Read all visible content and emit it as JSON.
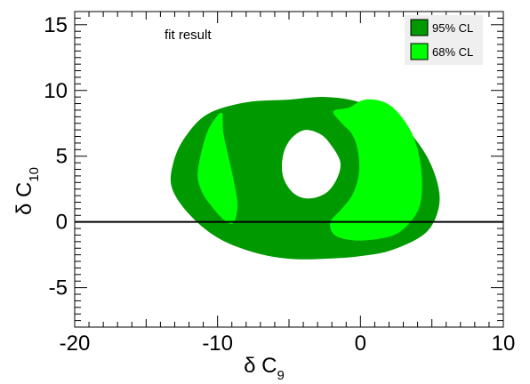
{
  "chart_data": {
    "type": "area",
    "title": "",
    "annotation": "fit result",
    "xlabel": {
      "main": "δ C",
      "sub": "9"
    },
    "ylabel": {
      "main": "δ C",
      "sub": "10"
    },
    "xlim": [
      -20,
      10
    ],
    "ylim": [
      -8,
      16
    ],
    "xticks": [
      -20,
      -10,
      0,
      10
    ],
    "xtick_labels": [
      "-20",
      "-10",
      "0",
      "10"
    ],
    "yticks": [
      -5,
      0,
      5,
      10,
      15
    ],
    "ytick_labels": [
      "-5",
      "0",
      "5",
      "10",
      "15"
    ],
    "reference_line": {
      "axis": "y",
      "value": 0,
      "color": "#000000"
    },
    "legend": {
      "placement": "top-right",
      "entries": [
        {
          "label": "95% CL",
          "color": "#009900"
        },
        {
          "label": "68% CL",
          "color": "#00ff00"
        }
      ]
    },
    "regions": {
      "cl95_outer": [
        [
          -5,
          9.3
        ],
        [
          -2.5,
          9.5
        ],
        [
          0,
          9.1
        ],
        [
          2.5,
          7.8
        ],
        [
          4.3,
          5.6
        ],
        [
          5.3,
          3.3
        ],
        [
          5.5,
          1.2
        ],
        [
          4.6,
          -0.8
        ],
        [
          2.3,
          -2.1
        ],
        [
          0,
          -2.6
        ],
        [
          -2.5,
          -2.8
        ],
        [
          -5,
          -2.8
        ],
        [
          -7.5,
          -2.3
        ],
        [
          -10,
          -1.2
        ],
        [
          -12,
          0.6
        ],
        [
          -13.2,
          2.6
        ],
        [
          -13.1,
          4.5
        ],
        [
          -12.3,
          6.4
        ],
        [
          -10.7,
          8.2
        ],
        [
          -8,
          9.1
        ]
      ],
      "cl95_hole": [
        [
          -3.8,
          7.0
        ],
        [
          -2.7,
          6.6
        ],
        [
          -1.9,
          5.6
        ],
        [
          -1.4,
          4.5
        ],
        [
          -1.6,
          3.4
        ],
        [
          -2.2,
          2.4
        ],
        [
          -3.0,
          1.9
        ],
        [
          -3.9,
          1.8
        ],
        [
          -4.7,
          2.2
        ],
        [
          -5.3,
          3.1
        ],
        [
          -5.5,
          4.2
        ],
        [
          -5.3,
          5.5
        ],
        [
          -4.7,
          6.5
        ]
      ],
      "cl68_left": [
        [
          -9.7,
          8.3
        ],
        [
          -9.6,
          6.8
        ],
        [
          -9.2,
          4.8
        ],
        [
          -8.8,
          2.8
        ],
        [
          -8.6,
          1.2
        ],
        [
          -8.9,
          -0.1
        ],
        [
          -9.6,
          0.2
        ],
        [
          -10.5,
          1.3
        ],
        [
          -11.1,
          2.3
        ],
        [
          -11.4,
          3.5
        ],
        [
          -11.2,
          5.0
        ],
        [
          -10.8,
          6.6
        ],
        [
          -10.4,
          7.5
        ]
      ],
      "cl68_right": [
        [
          -0.8,
          8.7
        ],
        [
          0.3,
          9.3
        ],
        [
          1.7,
          9.1
        ],
        [
          2.8,
          8.1
        ],
        [
          3.7,
          6.5
        ],
        [
          4.2,
          4.5
        ],
        [
          4.3,
          2.2
        ],
        [
          3.9,
          0.6
        ],
        [
          2.7,
          -0.8
        ],
        [
          1.2,
          -1.3
        ],
        [
          -0.5,
          -1.4
        ],
        [
          -1.8,
          -1.0
        ],
        [
          -2.1,
          0.0
        ],
        [
          -1.3,
          1.0
        ],
        [
          -0.5,
          2.2
        ],
        [
          -0.1,
          3.8
        ],
        [
          -0.2,
          5.5
        ],
        [
          -0.6,
          6.7
        ],
        [
          -1.3,
          7.5
        ],
        [
          -1.9,
          8.4
        ]
      ]
    }
  }
}
